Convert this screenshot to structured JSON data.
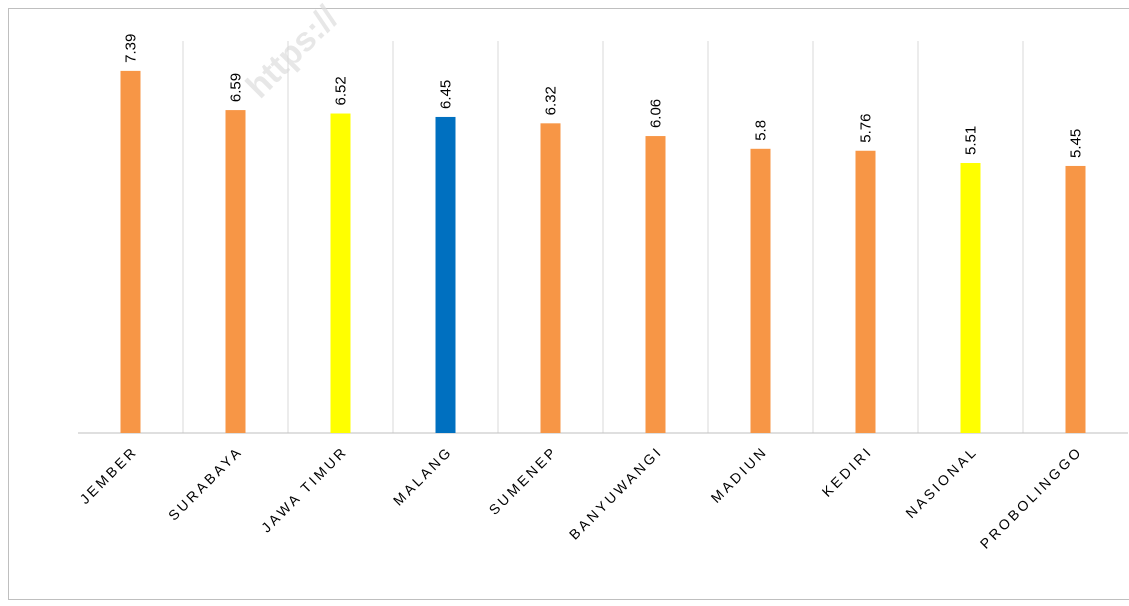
{
  "chart_data": {
    "type": "bar",
    "categories": [
      "JEMBER",
      "SURABAYA",
      "JAWA TIMUR",
      "MALANG",
      "SUMENEP",
      "BANYUWANGI",
      "MADIUN",
      "KEDIRI",
      "NASIONAL",
      "PROBOLINGGO"
    ],
    "values": [
      7.39,
      6.59,
      6.52,
      6.45,
      6.32,
      6.06,
      5.8,
      5.76,
      5.51,
      5.45
    ],
    "colors": [
      "#f79646",
      "#f79646",
      "#ffff00",
      "#0070c0",
      "#f79646",
      "#f79646",
      "#f79646",
      "#f79646",
      "#ffff00",
      "#f79646"
    ],
    "ylim": [
      0,
      8
    ],
    "watermark": "https://"
  }
}
